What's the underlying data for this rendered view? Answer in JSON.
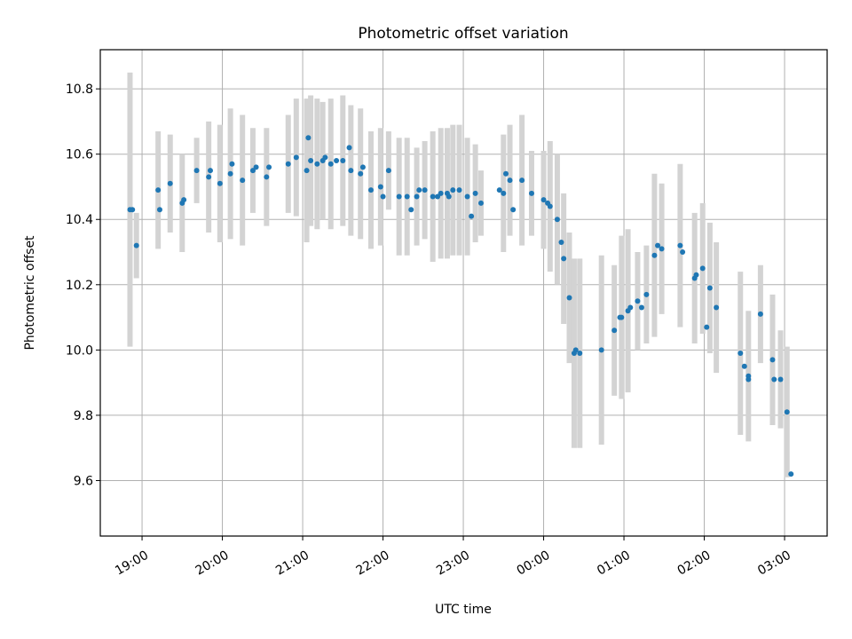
{
  "chart_data": {
    "type": "scatter",
    "title": "Photometric offset variation",
    "xlabel": "UTC time",
    "ylabel": "Photometric offset",
    "x_ticks": [
      "19:00",
      "20:00",
      "21:00",
      "22:00",
      "23:00",
      "00:00",
      "01:00",
      "02:00",
      "03:00"
    ],
    "x_tick_hours": [
      19,
      20,
      21,
      22,
      23,
      24,
      25,
      26,
      27
    ],
    "xlim_hours": [
      18.48,
      27.53
    ],
    "y_ticks": [
      "9.6",
      "9.8",
      "10.0",
      "10.2",
      "10.4",
      "10.6",
      "10.8"
    ],
    "ylim": [
      9.43,
      10.92
    ],
    "grid": true,
    "colors": {
      "point": "#1f77b4",
      "errorbar": "#d3d3d3",
      "grid": "#b0b0b0"
    },
    "series": [
      {
        "x_hours": [
          18.85,
          18.93,
          19.2,
          19.35,
          19.5,
          19.68,
          19.83,
          19.97,
          20.1,
          20.25,
          20.38,
          20.55,
          20.82,
          20.92,
          21.05,
          21.1,
          21.18,
          21.25,
          21.35,
          21.5,
          21.6,
          21.72,
          21.85,
          21.97,
          22.07,
          22.2,
          22.3,
          22.42,
          22.52,
          22.62,
          22.72,
          22.8,
          22.87,
          22.95,
          23.05,
          23.15,
          23.22,
          23.5,
          23.58,
          23.73,
          23.85,
          24.0,
          24.08,
          24.17,
          24.25,
          24.32,
          24.38,
          24.45,
          24.72,
          24.88,
          24.97,
          25.05,
          25.17,
          25.28,
          25.38,
          25.47,
          25.7,
          25.88,
          25.98,
          26.07,
          26.15,
          26.45,
          26.55,
          26.7,
          26.85,
          26.95,
          27.03
        ],
        "y": [
          10.43,
          10.32,
          10.49,
          10.51,
          10.45,
          10.55,
          10.53,
          10.51,
          10.54,
          10.52,
          10.55,
          10.53,
          10.57,
          10.59,
          10.55,
          10.58,
          10.57,
          10.58,
          10.57,
          10.58,
          10.55,
          10.54,
          10.49,
          10.5,
          10.55,
          10.47,
          10.47,
          10.47,
          10.49,
          10.47,
          10.48,
          10.48,
          10.49,
          10.49,
          10.47,
          10.48,
          10.45,
          10.48,
          10.52,
          10.52,
          10.48,
          10.46,
          10.44,
          10.4,
          10.28,
          10.16,
          9.99,
          9.99,
          10.0,
          10.06,
          10.1,
          10.12,
          10.15,
          10.17,
          10.29,
          10.31,
          10.32,
          10.22,
          10.25,
          10.19,
          10.13,
          9.99,
          9.92,
          10.11,
          9.97,
          9.91,
          9.81
        ],
        "y_err": [
          0.42,
          0.1,
          0.18,
          0.15,
          0.15,
          0.1,
          0.17,
          0.18,
          0.2,
          0.2,
          0.13,
          0.15,
          0.15,
          0.18,
          0.22,
          0.2,
          0.2,
          0.18,
          0.2,
          0.2,
          0.2,
          0.2,
          0.18,
          0.18,
          0.12,
          0.18,
          0.18,
          0.15,
          0.15,
          0.2,
          0.2,
          0.2,
          0.2,
          0.2,
          0.18,
          0.15,
          0.1,
          0.18,
          0.17,
          0.2,
          0.13,
          0.15,
          0.2,
          0.2,
          0.2,
          0.2,
          0.29,
          0.29,
          0.29,
          0.2,
          0.25,
          0.25,
          0.15,
          0.15,
          0.25,
          0.2,
          0.25,
          0.2,
          0.2,
          0.2,
          0.2,
          0.25,
          0.2,
          0.15,
          0.2,
          0.15,
          0.2
        ]
      },
      {
        "x_hours": [
          18.88,
          19.22,
          19.52,
          19.85,
          20.12,
          20.42,
          20.58,
          21.07,
          21.28,
          21.42,
          21.58,
          21.75,
          22.0,
          22.35,
          22.45,
          22.68,
          22.82,
          23.1,
          23.45,
          23.53,
          23.62,
          24.05,
          24.22,
          24.4,
          24.95,
          25.08,
          25.22,
          25.42,
          25.73,
          25.9,
          26.03,
          26.5,
          26.55,
          26.87,
          27.08
        ],
        "y": [
          10.43,
          10.43,
          10.46,
          10.55,
          10.57,
          10.56,
          10.56,
          10.65,
          10.59,
          10.58,
          10.62,
          10.56,
          10.47,
          10.43,
          10.49,
          10.47,
          10.47,
          10.41,
          10.49,
          10.54,
          10.43,
          10.45,
          10.33,
          10.0,
          10.1,
          10.13,
          10.13,
          10.32,
          10.3,
          10.23,
          10.07,
          9.95,
          9.91,
          9.91,
          9.62
        ]
      }
    ]
  }
}
